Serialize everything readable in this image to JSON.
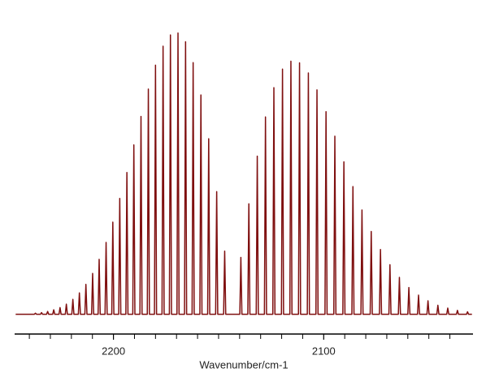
{
  "chart_data": {
    "type": "line",
    "x_label": "Wavenumber/cm-1",
    "color": "#7f0f0f",
    "xlim": [
      2247,
      2029
    ],
    "ylim": [
      -0.07,
      1.0
    ],
    "xticks": [
      2200,
      2100
    ],
    "xminorticks": [
      2240,
      2230,
      2220,
      2210,
      2190,
      2180,
      2170,
      2160,
      2150,
      2140,
      2130,
      2120,
      2110,
      2090,
      2080,
      2070,
      2060,
      2050,
      2040
    ],
    "x": [
      2246.5,
      2237.6,
      2237.1,
      2236.6,
      2234.7,
      2234.2,
      2233.7,
      2231.8,
      2231.3,
      2230.8,
      2228.9,
      2228.4,
      2227.9,
      2225.9,
      2225.4,
      2224.9,
      2222.9,
      2222.4,
      2221.9,
      2219.8,
      2219.3,
      2218.8,
      2216.7,
      2216.2,
      2215.7,
      2213.6,
      2213.1,
      2212.6,
      2210.4,
      2209.9,
      2209.4,
      2207.3,
      2206.8,
      2206.3,
      2204,
      2203.5,
      2203,
      2200.8,
      2200.3,
      2199.8,
      2197.5,
      2197,
      2196.5,
      2194.1,
      2193.6,
      2193.1,
      2190.8,
      2190.3,
      2189.8,
      2187.4,
      2186.9,
      2186.4,
      2183.9,
      2183.4,
      2182.9,
      2180.5,
      2180,
      2179.5,
      2176.9,
      2176.4,
      2175.9,
      2173.4,
      2172.9,
      2172.4,
      2169.8,
      2169.3,
      2168.8,
      2166.2,
      2165.7,
      2165.2,
      2162.6,
      2162.1,
      2161.6,
      2158.9,
      2158.4,
      2157.9,
      2155.2,
      2154.7,
      2154.2,
      2151.4,
      2150.9,
      2150.4,
      2147.6,
      2147.1,
      2146.6,
      2139.9,
      2139.4,
      2138.9,
      2136.1,
      2135.6,
      2135.1,
      2132.1,
      2131.6,
      2131.1,
      2128.2,
      2127.7,
      2127.2,
      2124.2,
      2123.7,
      2123.2,
      2120.1,
      2119.6,
      2119.1,
      2116.1,
      2115.6,
      2115.1,
      2112,
      2111.5,
      2111,
      2107.8,
      2107.3,
      2106.8,
      2103.7,
      2103.2,
      2102.7,
      2099.4,
      2098.9,
      2098.4,
      2095.2,
      2094.7,
      2094.2,
      2090.9,
      2090.4,
      2089.9,
      2086.6,
      2086.1,
      2085.6,
      2082.3,
      2081.8,
      2081.3,
      2077.9,
      2077.4,
      2076.9,
      2073.5,
      2073,
      2072.5,
      2069,
      2068.5,
      2068,
      2064.5,
      2064,
      2063.5,
      2060,
      2059.5,
      2059,
      2055.4,
      2054.9,
      2054.4,
      2050.9,
      2050.4,
      2049.9,
      2046.2,
      2045.7,
      2045.2,
      2041.5,
      2041,
      2040.5,
      2036.9,
      2036.4,
      2035.9,
      2032.1,
      2031.6,
      2031.1,
      2029.5
    ],
    "values": [
      0,
      0,
      0.004,
      0,
      0,
      0.006,
      0,
      0,
      0.01,
      0,
      0,
      0.016,
      0,
      0,
      0.024,
      0,
      0,
      0.036,
      0,
      0,
      0.053,
      0,
      0,
      0.076,
      0,
      0,
      0.106,
      0,
      0,
      0.145,
      0,
      0,
      0.195,
      0,
      0,
      0.255,
      0,
      0,
      0.327,
      0,
      0,
      0.411,
      0,
      0,
      0.503,
      0,
      0,
      0.601,
      0,
      0,
      0.702,
      0,
      0,
      0.799,
      0,
      0,
      0.884,
      0,
      0,
      0.951,
      0,
      0,
      0.991,
      0,
      0,
      0.998,
      0,
      0,
      0.967,
      0,
      0,
      0.893,
      0,
      0,
      0.778,
      0,
      0,
      0.623,
      0,
      0,
      0.435,
      0,
      0,
      0.224,
      0,
      0,
      0.202,
      0,
      0,
      0.392,
      0,
      0,
      0.561,
      0,
      0,
      0.7,
      0,
      0,
      0.804,
      0,
      0,
      0.87,
      0,
      0,
      0.898,
      0,
      0,
      0.892,
      0,
      0,
      0.856,
      0,
      0,
      0.796,
      0,
      0,
      0.719,
      0,
      0,
      0.632,
      0,
      0,
      0.541,
      0,
      0,
      0.453,
      0,
      0,
      0.37,
      0,
      0,
      0.294,
      0,
      0,
      0.23,
      0,
      0,
      0.176,
      0,
      0,
      0.131,
      0,
      0,
      0.095,
      0,
      0,
      0.068,
      0,
      0,
      0.048,
      0,
      0,
      0.032,
      0,
      0,
      0.022,
      0,
      0,
      0.014,
      0,
      0,
      0.009,
      0,
      0
    ]
  }
}
